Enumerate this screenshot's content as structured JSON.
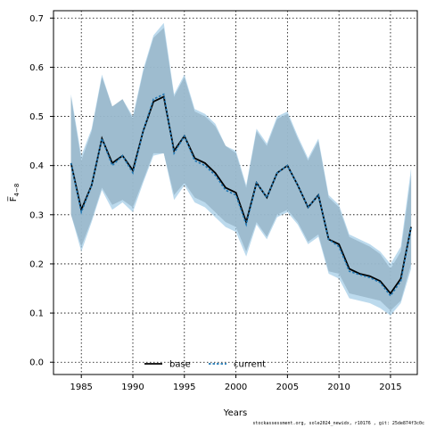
{
  "chart_data": {
    "type": "line",
    "xlabel": "Years",
    "ylabel": "F̅",
    "ylabel_subscript": "4−8",
    "xlim": [
      1982.3,
      2017.6
    ],
    "ylim": [
      -0.025,
      0.715
    ],
    "xticks": [
      1985,
      1990,
      1995,
      2000,
      2005,
      2010,
      2015
    ],
    "yticks": [
      "0.0",
      "0.1",
      "0.2",
      "0.3",
      "0.4",
      "0.5",
      "0.6",
      "0.7"
    ],
    "grid": true,
    "legend_position": "bottom-center",
    "x": [
      1984,
      1985,
      1986,
      1987,
      1988,
      1989,
      1990,
      1991,
      1992,
      1993,
      1994,
      1995,
      1996,
      1997,
      1998,
      1999,
      2000,
      2001,
      2002,
      2003,
      2004,
      2005,
      2006,
      2007,
      2008,
      2009,
      2010,
      2011,
      2012,
      2013,
      2014,
      2015,
      2016,
      2017
    ],
    "series": [
      {
        "name": "base",
        "color": "#000000",
        "band_color": "#8a8a8a",
        "values": [
          0.405,
          0.31,
          0.36,
          0.455,
          0.405,
          0.42,
          0.39,
          0.47,
          0.53,
          0.54,
          0.43,
          0.46,
          0.415,
          0.405,
          0.385,
          0.355,
          0.345,
          0.285,
          0.365,
          0.335,
          0.385,
          0.4,
          0.36,
          0.315,
          0.34,
          0.25,
          0.24,
          0.19,
          0.18,
          0.175,
          0.165,
          0.14,
          0.17,
          0.275
        ],
        "lower": [
          0.3,
          0.235,
          0.29,
          0.355,
          0.32,
          0.33,
          0.315,
          0.37,
          0.425,
          0.425,
          0.34,
          0.365,
          0.335,
          0.325,
          0.305,
          0.285,
          0.275,
          0.225,
          0.285,
          0.255,
          0.3,
          0.31,
          0.285,
          0.245,
          0.26,
          0.185,
          0.18,
          0.14,
          0.135,
          0.13,
          0.125,
          0.105,
          0.125,
          0.2
        ],
        "upper": [
          0.54,
          0.41,
          0.47,
          0.58,
          0.52,
          0.535,
          0.495,
          0.59,
          0.66,
          0.68,
          0.54,
          0.58,
          0.51,
          0.5,
          0.48,
          0.44,
          0.425,
          0.355,
          0.47,
          0.44,
          0.495,
          0.505,
          0.455,
          0.41,
          0.45,
          0.335,
          0.315,
          0.255,
          0.245,
          0.235,
          0.22,
          0.19,
          0.225,
          0.38
        ]
      },
      {
        "name": "current",
        "color": "#1f77b4",
        "band_color": "#9fcbe6",
        "values": [
          0.405,
          0.305,
          0.36,
          0.455,
          0.4,
          0.42,
          0.385,
          0.47,
          0.535,
          0.545,
          0.425,
          0.46,
          0.41,
          0.4,
          0.38,
          0.35,
          0.34,
          0.28,
          0.365,
          0.335,
          0.385,
          0.4,
          0.36,
          0.315,
          0.34,
          0.25,
          0.235,
          0.185,
          0.178,
          0.172,
          0.162,
          0.135,
          0.165,
          0.275
        ],
        "lower": [
          0.3,
          0.225,
          0.285,
          0.35,
          0.31,
          0.325,
          0.305,
          0.365,
          0.42,
          0.425,
          0.33,
          0.36,
          0.325,
          0.315,
          0.295,
          0.275,
          0.265,
          0.215,
          0.28,
          0.25,
          0.295,
          0.305,
          0.28,
          0.24,
          0.255,
          0.18,
          0.17,
          0.13,
          0.125,
          0.12,
          0.11,
          0.095,
          0.12,
          0.19
        ],
        "upper": [
          0.545,
          0.42,
          0.475,
          0.585,
          0.52,
          0.535,
          0.5,
          0.595,
          0.665,
          0.69,
          0.545,
          0.585,
          0.515,
          0.505,
          0.485,
          0.44,
          0.43,
          0.36,
          0.475,
          0.445,
          0.5,
          0.51,
          0.46,
          0.415,
          0.455,
          0.34,
          0.32,
          0.26,
          0.25,
          0.24,
          0.225,
          0.2,
          0.235,
          0.395
        ]
      }
    ]
  },
  "footer": "stockassessment.org, sole2024_newidx, r10176 , git: 25de874f3c0c"
}
